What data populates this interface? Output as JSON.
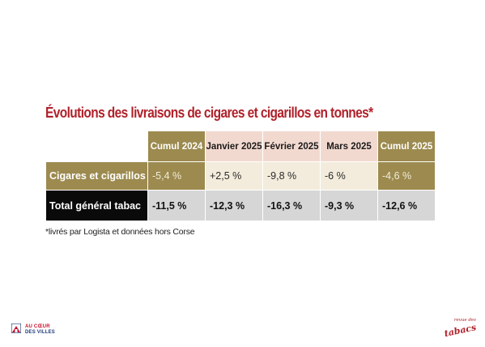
{
  "title": "Évolutions des livraisons de cigares et cigarillos en tonnes*",
  "table": {
    "headers": [
      "Cumul 2024",
      "Janvier 2025",
      "Février 2025",
      "Mars 2025",
      "Cumul 2025"
    ],
    "rows": [
      {
        "label": "Cigares et cigarillos",
        "values": [
          "-5,4 %",
          "+2,5 %",
          "-9,8 %",
          "-6 %",
          "-4,6 %"
        ]
      },
      {
        "label": "Total général tabac",
        "values": [
          "-11,5 %",
          "-12,3 %",
          "-16,3 %",
          "-9,3 %",
          "-12,6 %"
        ]
      }
    ]
  },
  "footnote": "*livrés par Logista et données hors Corse",
  "logos": {
    "left_line1": "AU CŒUR",
    "left_line2": "DES VILLES",
    "right_small": "revue des",
    "right_big": "tabacs"
  },
  "colors": {
    "title": "#b0222b",
    "gold": "#9c8a4f",
    "pink": "#f2d9cf",
    "cream": "#f3ecdc",
    "gray": "#d6d6d6",
    "black": "#0a0a0a"
  }
}
